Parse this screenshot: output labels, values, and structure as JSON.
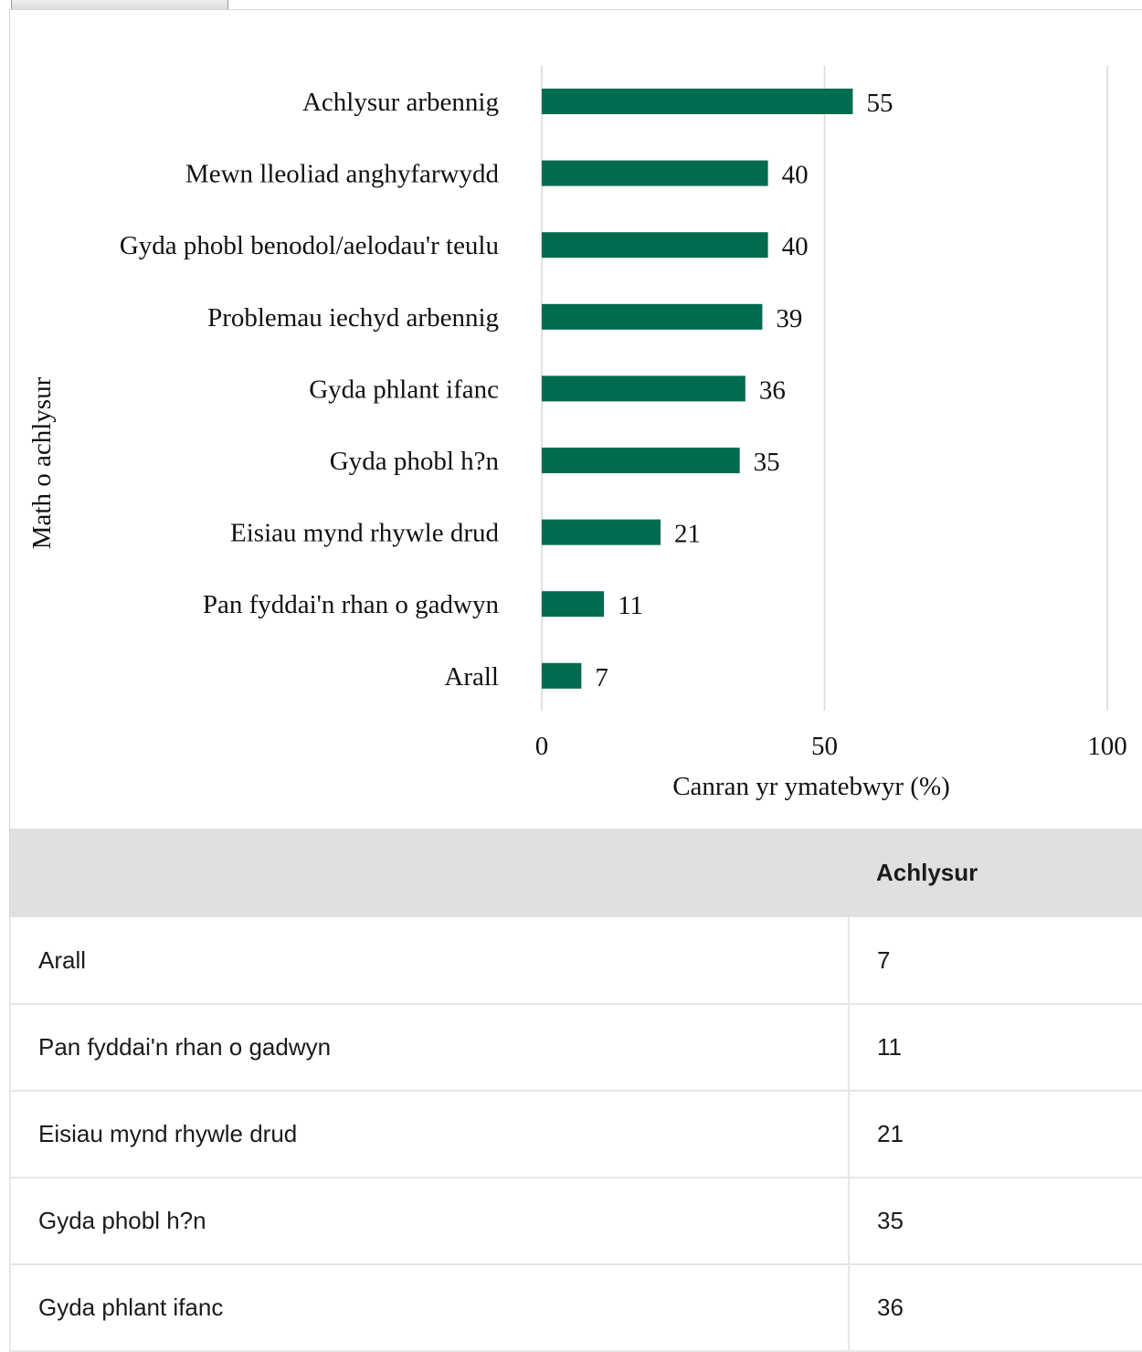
{
  "chart_data": {
    "type": "bar",
    "orientation": "horizontal",
    "categories": [
      "Achlysur arbennig",
      "Mewn lleoliad anghyfarwydd",
      "Gyda phobl benodol/aelodau'r teulu",
      "Problemau iechyd arbennig",
      "Gyda phlant ifanc",
      "Gyda phobl h?n",
      "Eisiau mynd rhywle drud",
      "Pan fyddai'n rhan o gadwyn",
      "Arall"
    ],
    "values": [
      55,
      40,
      40,
      39,
      36,
      35,
      21,
      11,
      7
    ],
    "xlabel": "Canran yr ymatebwyr (%)",
    "ylabel": "Math o achlysur",
    "xlim": [
      0,
      100
    ],
    "xticks": [
      "0",
      "50",
      "100"
    ],
    "grid": true,
    "bar_color": "#006b4f",
    "data_labels": true
  },
  "table": {
    "header_label": "",
    "header_value": "Achlysur",
    "rows": [
      {
        "label": "Arall",
        "value": "7"
      },
      {
        "label": "Pan fyddai'n rhan o gadwyn",
        "value": "11"
      },
      {
        "label": "Eisiau mynd rhywle drud",
        "value": "21"
      },
      {
        "label": "Gyda phobl h?n",
        "value": "35"
      },
      {
        "label": "Gyda phlant ifanc",
        "value": "36"
      }
    ]
  }
}
